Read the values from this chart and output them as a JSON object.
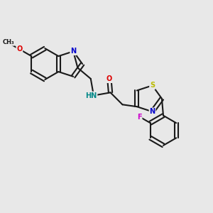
{
  "bg_color": "#e8e8e8",
  "bond_color": "#1a1a1a",
  "bond_width": 1.5,
  "atom_colors": {
    "N": "#0000cc",
    "O": "#dd0000",
    "S": "#bbbb00",
    "F": "#cc00cc",
    "H": "#008888",
    "C": "#1a1a1a"
  },
  "font_size_atom": 7.0,
  "font_size_label": 6.0
}
